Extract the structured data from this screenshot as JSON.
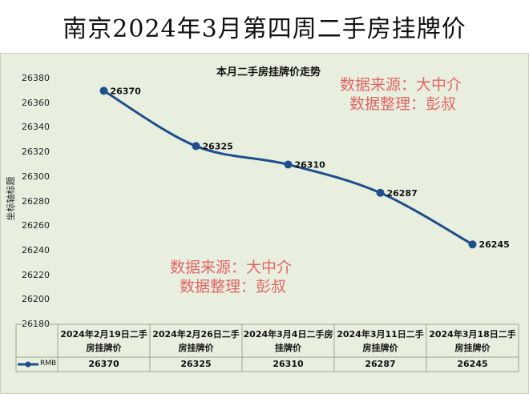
{
  "title": "南京2024年3月第四周二手房挂牌价",
  "watermarks": [
    {
      "line1": "数据来源：大中介",
      "line2": "数据整理：彭叔"
    },
    {
      "line1": "数据来源：大中介",
      "line2": "数据整理：彭叔"
    }
  ],
  "chart_data": {
    "type": "line",
    "title": "本月二手房挂牌价走势",
    "ylabel": "坐标轴标题",
    "xlabel": "",
    "ylim": [
      26180,
      26380
    ],
    "yticks": [
      26380,
      26360,
      26340,
      26320,
      26300,
      26280,
      26260,
      26240,
      26220,
      26200,
      26180
    ],
    "categories": [
      "2024年2月19日二手房挂牌价",
      "2024年2月26日二手房挂牌价",
      "2024年3月4日二手房挂牌价",
      "2024年3月11日二手房挂牌价",
      "2024年3月18日二手房挂牌价"
    ],
    "series": [
      {
        "name": "RMB",
        "values": [
          26370,
          26325,
          26310,
          26287,
          26245
        ],
        "color": "#1f4e8c"
      }
    ],
    "data_table": true,
    "legend": "data table"
  }
}
